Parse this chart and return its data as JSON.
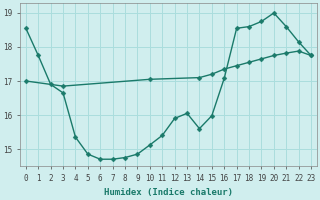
{
  "line1_x": [
    0,
    1,
    2,
    3,
    4,
    5,
    6,
    7,
    8,
    9,
    10,
    11,
    12,
    13,
    14,
    15,
    16,
    17,
    18,
    19,
    20,
    21,
    22,
    23
  ],
  "line1_y": [
    18.55,
    17.75,
    16.9,
    16.65,
    15.35,
    14.85,
    14.7,
    14.7,
    14.75,
    14.85,
    15.12,
    15.4,
    15.9,
    16.05,
    15.6,
    15.98,
    17.08,
    18.55,
    18.6,
    18.75,
    19.0,
    18.6,
    18.15,
    17.75
  ],
  "line2_x": [
    0,
    3,
    10,
    14,
    15,
    16,
    17,
    18,
    19,
    20,
    21,
    22,
    23
  ],
  "line2_y": [
    17.0,
    16.85,
    17.05,
    17.1,
    17.2,
    17.35,
    17.45,
    17.55,
    17.65,
    17.75,
    17.82,
    17.88,
    17.75
  ],
  "line_color": "#1a7a6a",
  "bg_color": "#d0eeee",
  "grid_color": "#aadddd",
  "xlabel": "Humidex (Indice chaleur)",
  "ylim": [
    14.5,
    19.3
  ],
  "xlim": [
    -0.5,
    23.5
  ],
  "yticks": [
    15,
    16,
    17,
    18,
    19
  ],
  "xticks": [
    0,
    1,
    2,
    3,
    4,
    5,
    6,
    7,
    8,
    9,
    10,
    11,
    12,
    13,
    14,
    15,
    16,
    17,
    18,
    19,
    20,
    21,
    22,
    23
  ],
  "marker_size": 2.5,
  "line_width": 1.0,
  "tick_fontsize": 5.5,
  "xlabel_fontsize": 6.5
}
